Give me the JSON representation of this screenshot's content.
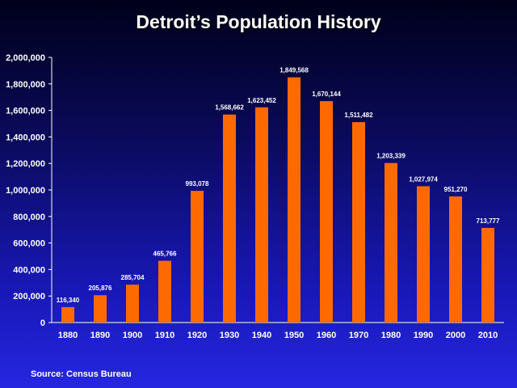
{
  "chart_data": {
    "type": "bar",
    "title": "Detroit’s Population History",
    "categories": [
      "1880",
      "1890",
      "1900",
      "1910",
      "1920",
      "1930",
      "1940",
      "1950",
      "1960",
      "1970",
      "1980",
      "1990",
      "2000",
      "2010"
    ],
    "values": [
      116340,
      205876,
      285704,
      465766,
      993078,
      1568662,
      1623452,
      1849568,
      1670144,
      1511482,
      1203339,
      1027974,
      951270,
      713777
    ],
    "data_labels": [
      "116,340",
      "205,876",
      "285,704",
      "465,766",
      "993,078",
      "1,568,662",
      "1,623,452",
      "1,849,568",
      "1,670,144",
      "1,511,482",
      "1,203,339",
      "1,027,974",
      "951,270",
      "713,777"
    ],
    "y_ticks": [
      "0",
      "200,000",
      "400,000",
      "600,000",
      "800,000",
      "1,000,000",
      "1,200,000",
      "1,400,000",
      "1,600,000",
      "1,800,000",
      "2,000,000"
    ],
    "ylim": [
      0,
      2000000
    ],
    "xlabel": "",
    "ylabel": "",
    "grid": false,
    "legend": "none",
    "bar_color": "#ff6a00",
    "source": "Source:  Census Bureau"
  }
}
